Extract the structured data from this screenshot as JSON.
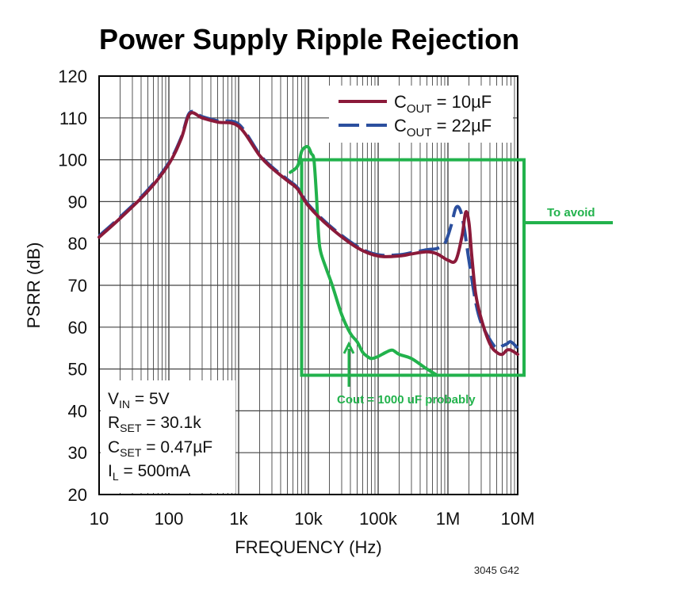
{
  "chart_data": {
    "type": "line",
    "title": "Power Supply Ripple Rejection",
    "xlabel": "FREQUENCY (Hz)",
    "ylabel": "PSRR (dB)",
    "xscale": "log",
    "xlim": [
      10,
      10000000
    ],
    "ylim": [
      20,
      120
    ],
    "grid": true,
    "x_ticks": [
      {
        "v": 10,
        "label": "10"
      },
      {
        "v": 100,
        "label": "100"
      },
      {
        "v": 1000,
        "label": "1k"
      },
      {
        "v": 10000,
        "label": "10k"
      },
      {
        "v": 100000,
        "label": "100k"
      },
      {
        "v": 1000000,
        "label": "1M"
      },
      {
        "v": 10000000,
        "label": "10M"
      }
    ],
    "y_ticks": [
      20,
      30,
      40,
      50,
      60,
      70,
      80,
      90,
      100,
      110,
      120
    ],
    "legend_position": "top-right",
    "series": [
      {
        "name_main": "C",
        "name_sub": "OUT",
        "name_rest": " = 10µF",
        "color": "#8b1a3a",
        "style": "solid",
        "x": [
          10,
          20,
          50,
          100,
          150,
          200,
          300,
          500,
          1000,
          2000,
          3000,
          5000,
          7000,
          10000,
          20000,
          50000,
          100000,
          200000,
          300000,
          500000,
          700000,
          1000000,
          1300000,
          1600000,
          1800000,
          2000000,
          2200000,
          2500000,
          3000000,
          4000000,
          5000000,
          6000000,
          7000000,
          8000000,
          10000000
        ],
        "y": [
          81.5,
          86,
          92.5,
          99,
          105,
          111,
          110,
          109,
          108,
          101,
          98,
          95,
          93,
          89,
          84,
          79,
          77,
          77,
          77.5,
          78,
          77.5,
          76,
          76,
          82,
          87.5,
          85,
          77,
          68,
          62,
          56,
          54,
          53.5,
          54.5,
          54.5,
          53.5
        ]
      },
      {
        "name_main": "C",
        "name_sub": "OUT",
        "name_rest": " = 22µF",
        "color": "#2b4f9e",
        "style": "dashed",
        "x": [
          10,
          20,
          50,
          100,
          150,
          200,
          300,
          500,
          1000,
          2000,
          3000,
          5000,
          7000,
          10000,
          20000,
          50000,
          100000,
          200000,
          300000,
          500000,
          700000,
          900000,
          1100000,
          1300000,
          1500000,
          1700000,
          2000000,
          2500000,
          3000000,
          4000000,
          5000000,
          6000000,
          7000000,
          8000000,
          10000000
        ],
        "y": [
          81.8,
          86.3,
          92.8,
          99.3,
          105.3,
          111.3,
          110.3,
          109.3,
          108.5,
          101.3,
          98.3,
          95.3,
          93.3,
          89.3,
          84.3,
          79.3,
          77.3,
          77.3,
          77.8,
          78.5,
          78.8,
          80,
          84,
          88.5,
          88,
          84,
          76,
          66,
          61,
          57,
          55,
          55.5,
          56,
          56.5,
          55
        ]
      }
    ],
    "conditions": [
      {
        "main": "V",
        "sub": "IN",
        "rest": " = 5V"
      },
      {
        "main": "R",
        "sub": "SET",
        "rest": " = 30.1k"
      },
      {
        "main": "C",
        "sub": "SET",
        "rest": " = 0.47µF"
      },
      {
        "main": "I",
        "sub": "L",
        "rest": " = 500mA"
      }
    ],
    "annotations": {
      "avoid_label": "To avoid",
      "cout_label": "Cout = 1000 uF probably",
      "color": "#22b24c",
      "avoid_region": {
        "x": [
          8000,
          10000000
        ],
        "y": [
          48.5,
          100
        ]
      },
      "sketch_curve": {
        "x": [
          5500,
          7000,
          8000,
          9000,
          10000,
          11000,
          12000,
          13000,
          14000,
          15000,
          18000,
          22000,
          30000,
          40000,
          50000,
          60000,
          70000,
          80000,
          100000,
          130000,
          160000,
          200000,
          300000,
          500000,
          700000
        ],
        "y": [
          97,
          98.5,
          102,
          103,
          103,
          101.5,
          100,
          92,
          82,
          78,
          74,
          70,
          63,
          58.5,
          56.5,
          54,
          53,
          52.5,
          53,
          54,
          54.5,
          53.5,
          52.5,
          50,
          48.5
        ]
      }
    },
    "figure_code": "3045 G42"
  }
}
